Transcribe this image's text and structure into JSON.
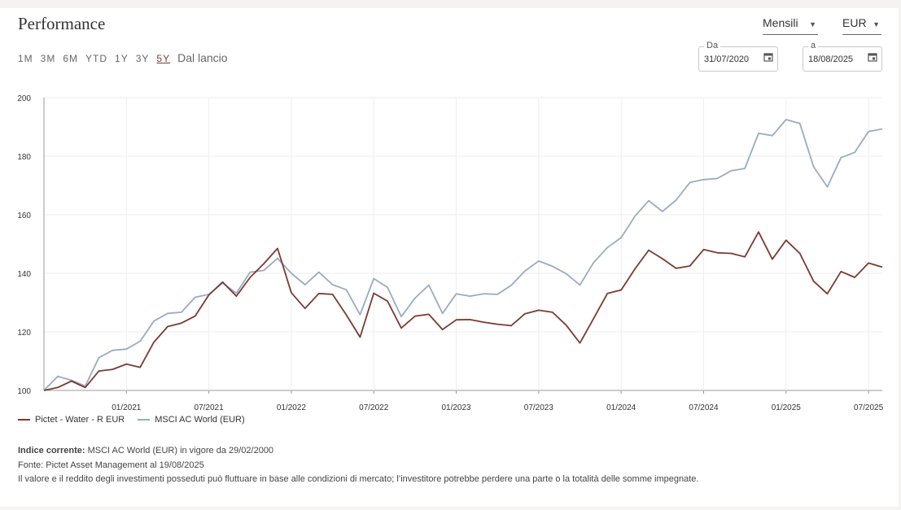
{
  "header": {
    "title": "Performance",
    "frequency": "Mensili",
    "currency": "EUR"
  },
  "periods": [
    {
      "label": "1M",
      "active": false
    },
    {
      "label": "3M",
      "active": false
    },
    {
      "label": "6M",
      "active": false
    },
    {
      "label": "YTD",
      "active": false
    },
    {
      "label": "1Y",
      "active": false
    },
    {
      "label": "3Y",
      "active": false
    },
    {
      "label": "5Y",
      "active": true
    },
    {
      "label": "Dal lancio",
      "active": false
    }
  ],
  "date_range": {
    "from_label": "Da",
    "from_value": "31/07/2020",
    "to_label": "a",
    "to_value": "18/08/2025"
  },
  "chart_data": {
    "type": "line",
    "title": "",
    "xlabel": "",
    "ylabel": "",
    "ylim": [
      100,
      200
    ],
    "yticks": [
      100,
      120,
      140,
      160,
      180,
      200
    ],
    "xticks": [
      "01/2021",
      "07/2021",
      "01/2022",
      "07/2022",
      "01/2023",
      "07/2023",
      "01/2024",
      "07/2024",
      "01/2025",
      "07/2025"
    ],
    "grid": true,
    "legend_position": "bottom-left",
    "x": [
      "07/2020",
      "08/2020",
      "09/2020",
      "10/2020",
      "11/2020",
      "12/2020",
      "01/2021",
      "02/2021",
      "03/2021",
      "04/2021",
      "05/2021",
      "06/2021",
      "07/2021",
      "08/2021",
      "09/2021",
      "10/2021",
      "11/2021",
      "12/2021",
      "01/2022",
      "02/2022",
      "03/2022",
      "04/2022",
      "05/2022",
      "06/2022",
      "07/2022",
      "08/2022",
      "09/2022",
      "10/2022",
      "11/2022",
      "12/2022",
      "01/2023",
      "02/2023",
      "03/2023",
      "04/2023",
      "05/2023",
      "06/2023",
      "07/2023",
      "08/2023",
      "09/2023",
      "10/2023",
      "11/2023",
      "12/2023",
      "01/2024",
      "02/2024",
      "03/2024",
      "04/2024",
      "05/2024",
      "06/2024",
      "07/2024",
      "08/2024",
      "09/2024",
      "10/2024",
      "11/2024",
      "12/2024",
      "01/2025",
      "02/2025",
      "03/2025",
      "04/2025",
      "05/2025",
      "06/2025",
      "07/2025",
      "08/2025"
    ],
    "series": [
      {
        "name": "Pictet - Water - R EUR",
        "color": "#7b3b30",
        "values": [
          100,
          101,
          103.2,
          101,
          106.6,
          107.2,
          109,
          107.9,
          116.5,
          121.8,
          123,
          125.4,
          132.6,
          137,
          132.2,
          138.6,
          143.3,
          148.5,
          133.4,
          128,
          133.1,
          132.8,
          125.8,
          118.2,
          133.2,
          130.5,
          121.3,
          125.4,
          126,
          120.8,
          124.1,
          124.2,
          123.3,
          122.6,
          122.1,
          126.2,
          127.4,
          126.7,
          122.3,
          116.2,
          124.6,
          133.1,
          134.3,
          141.5,
          147.9,
          145,
          141.7,
          142.5,
          148.1,
          147,
          146.8,
          145.6,
          154.1,
          144.8,
          151.3,
          146.8,
          137.3,
          133,
          140.6,
          138.6,
          143.5,
          142.1
        ]
      },
      {
        "name": "MSCI AC World (EUR)",
        "color": "#9aabc0",
        "values": [
          100,
          104.8,
          103.5,
          101.5,
          111.2,
          113.7,
          114.1,
          116.8,
          123.7,
          126.3,
          126.7,
          131.8,
          132.8,
          136.7,
          133.2,
          140.4,
          141,
          145.1,
          140,
          136.1,
          140.4,
          136.1,
          134.4,
          125.9,
          138.2,
          135.2,
          125.2,
          131.5,
          136,
          126.3,
          133,
          132.2,
          133,
          132.8,
          135.9,
          140.8,
          144.2,
          142.4,
          139.9,
          136,
          143.7,
          148.8,
          152.2,
          159.5,
          164.8,
          161.1,
          165,
          171,
          172,
          172.4,
          175,
          175.8,
          187.8,
          187,
          192.5,
          191.2,
          176.4,
          169.5,
          179.5,
          181.3,
          188.4,
          189.3
        ]
      }
    ]
  },
  "notes": {
    "index_label": "Indice corrente:",
    "index_text": "MSCI AC World (EUR) in vigore da 29/02/2000",
    "source": "Fonte: Pictet Asset Management al 19/08/2025",
    "disclaimer": "Il valore e il reddito degli investimenti posseduti può fluttuare in base alle condizioni di mercato; l’investitore potrebbe perdere una parte o la totalità delle somme impegnate."
  }
}
